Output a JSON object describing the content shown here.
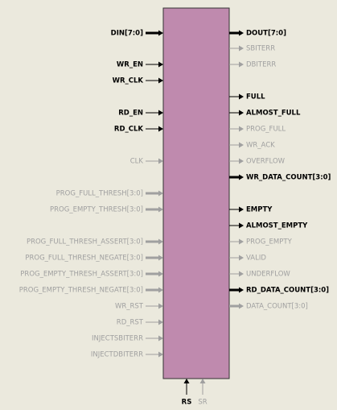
{
  "left_pins": [
    {
      "label": "DIN[7:0]",
      "active": true,
      "bus": true
    },
    {
      "label": "WR_EN",
      "active": true,
      "bus": false
    },
    {
      "label": "WR_CLK",
      "active": true,
      "bus": false
    },
    {
      "label": "RD_EN",
      "active": true,
      "bus": false
    },
    {
      "label": "RD_CLK",
      "active": true,
      "bus": false
    },
    {
      "label": "CLK",
      "active": false,
      "bus": false
    },
    {
      "label": "PROG_FULL_THRESH[3:0]",
      "active": false,
      "bus": true
    },
    {
      "label": "PROG_EMPTY_THRESH[3:0]",
      "active": false,
      "bus": true
    },
    {
      "label": "PROG_FULL_THRESH_ASSERT[3:0]",
      "active": false,
      "bus": true
    },
    {
      "label": "PROG_FULL_THRESH_NEGATE[3:0]",
      "active": false,
      "bus": true
    },
    {
      "label": "PROG_EMPTY_THRESH_ASSERT[3:0]",
      "active": false,
      "bus": true
    },
    {
      "label": "PROG_EMPTY_THRESH_NEGATE[3:0]",
      "active": false,
      "bus": true
    },
    {
      "label": "WR_RST",
      "active": false,
      "bus": false
    },
    {
      "label": "RD_RST",
      "active": false,
      "bus": false
    },
    {
      "label": "INJECTSBITERR",
      "active": false,
      "bus": false
    },
    {
      "label": "INJECTDBITERR",
      "active": false,
      "bus": false
    }
  ],
  "right_pins": [
    {
      "label": "DOUT[7:0]",
      "active": true,
      "bus": true
    },
    {
      "label": "SBITERR",
      "active": false,
      "bus": false
    },
    {
      "label": "DBITERR",
      "active": false,
      "bus": false
    },
    {
      "label": "FULL",
      "active": true,
      "bus": false
    },
    {
      "label": "ALMOST_FULL",
      "active": true,
      "bus": false
    },
    {
      "label": "PROG_FULL",
      "active": false,
      "bus": false
    },
    {
      "label": "WR_ACK",
      "active": false,
      "bus": false
    },
    {
      "label": "OVERFLOW",
      "active": false,
      "bus": false
    },
    {
      "label": "WR_DATA_COUNT[3:0]",
      "active": true,
      "bus": true
    },
    {
      "label": "EMPTY",
      "active": true,
      "bus": false
    },
    {
      "label": "ALMOST_EMPTY",
      "active": true,
      "bus": false
    },
    {
      "label": "PROG_EMPTY",
      "active": false,
      "bus": false
    },
    {
      "label": "VALID",
      "active": false,
      "bus": false
    },
    {
      "label": "UNDERFLOW",
      "active": false,
      "bus": false
    },
    {
      "label": "RD_DATA_COUNT[3:0]",
      "active": true,
      "bus": true
    },
    {
      "label": "DATA_COUNT[3:0]",
      "active": false,
      "bus": true
    }
  ],
  "bottom_pins": [
    {
      "label": "RS",
      "active": true,
      "bus": false
    },
    {
      "label": "SR",
      "active": false,
      "bus": false
    }
  ]
}
